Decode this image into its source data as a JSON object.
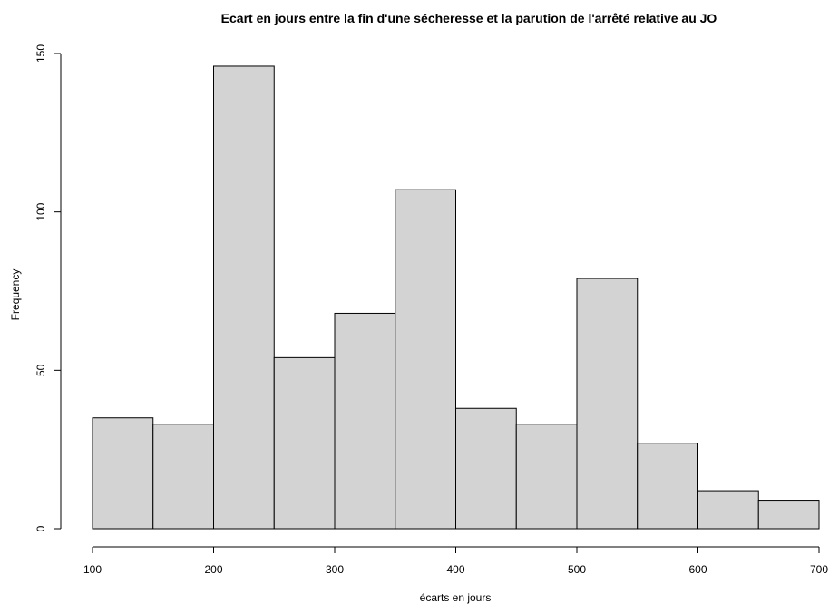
{
  "chart_data": {
    "type": "bar",
    "title": "Ecart en jours entre la fin d'une sécheresse et la parution de l'arrêté relative au JO",
    "xlabel": "écarts en jours",
    "ylabel": "Frequency",
    "bins": [
      {
        "from": 100,
        "to": 150,
        "value": 35
      },
      {
        "from": 150,
        "to": 200,
        "value": 33
      },
      {
        "from": 200,
        "to": 250,
        "value": 146
      },
      {
        "from": 250,
        "to": 300,
        "value": 54
      },
      {
        "from": 300,
        "to": 350,
        "value": 68
      },
      {
        "from": 350,
        "to": 400,
        "value": 107
      },
      {
        "from": 400,
        "to": 450,
        "value": 38
      },
      {
        "from": 450,
        "to": 500,
        "value": 33
      },
      {
        "from": 500,
        "to": 550,
        "value": 79
      },
      {
        "from": 550,
        "to": 600,
        "value": 27
      },
      {
        "from": 600,
        "to": 650,
        "value": 12
      },
      {
        "from": 650,
        "to": 700,
        "value": 9
      }
    ],
    "xlim": [
      100,
      700
    ],
    "ylim": [
      0,
      150
    ],
    "x_ticks": [
      100,
      200,
      300,
      400,
      500,
      600,
      700
    ],
    "y_ticks": [
      0,
      50,
      100,
      150
    ],
    "bar_color": "#d3d3d3",
    "grid": false,
    "legend": "none"
  }
}
